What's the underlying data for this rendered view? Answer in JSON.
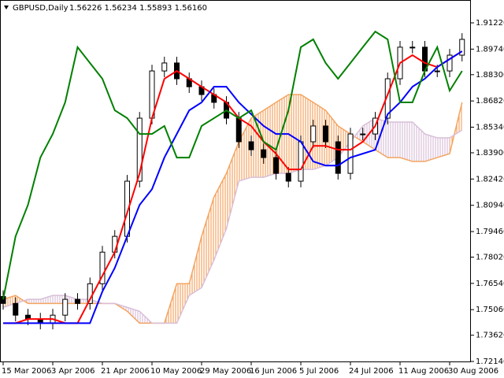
{
  "chart_data": {
    "type": "candlestick",
    "title": "GBPUSD,Daily",
    "quote": "1.56226 1.56234 1.55893 1.56160",
    "categories": [
      "15 Mar 2006",
      null,
      null,
      null,
      "3 Apr 2006",
      null,
      null,
      null,
      "21 Apr 2006",
      null,
      null,
      null,
      "10 May 2006",
      null,
      null,
      null,
      "29 May 2006",
      null,
      null,
      null,
      "16 Jun 2006",
      null,
      null,
      null,
      "5 Jul 2006",
      null,
      null,
      null,
      "24 Jul 2006",
      null,
      null,
      null,
      "11 Aug 2006",
      null,
      null,
      null,
      "30 Aug 2006",
      null
    ],
    "open": [
      1.758,
      1.7541,
      1.7475,
      1.7453,
      1.743,
      1.7475,
      1.7564,
      1.7541,
      1.7652,
      1.783,
      1.7919,
      1.823,
      1.8585,
      1.8851,
      1.8896,
      1.8807,
      1.8762,
      1.8718,
      1.8674,
      1.8585,
      1.8452,
      1.8407,
      1.8363,
      1.8274,
      1.823,
      1.8452,
      1.8541,
      1.8452,
      1.8274,
      1.8496,
      1.8496,
      1.8585,
      1.8807,
      1.8985,
      1.8985,
      1.8851,
      1.8851,
      1.894
    ],
    "high": [
      1.7615,
      1.7576,
      1.751,
      1.7488,
      1.751,
      1.7599,
      1.7599,
      1.7687,
      1.7865,
      1.7954,
      1.8265,
      1.862,
      1.8886,
      1.8931,
      1.8931,
      1.8842,
      1.8797,
      1.8753,
      1.8709,
      1.862,
      1.8487,
      1.8442,
      1.8398,
      1.8309,
      1.8487,
      1.8576,
      1.8576,
      1.8487,
      1.8531,
      1.8531,
      1.862,
      1.8842,
      1.902,
      1.902,
      1.902,
      1.8886,
      1.8975,
      1.9064
    ],
    "low": [
      1.7506,
      1.744,
      1.7418,
      1.7395,
      1.7395,
      1.744,
      1.7506,
      1.7506,
      1.7617,
      1.7795,
      1.7884,
      1.8195,
      1.855,
      1.8816,
      1.8772,
      1.8727,
      1.8683,
      1.8639,
      1.855,
      1.8417,
      1.8372,
      1.8328,
      1.8239,
      1.8195,
      1.8195,
      1.8417,
      1.8417,
      1.8239,
      1.8239,
      1.8461,
      1.8461,
      1.855,
      1.8772,
      1.895,
      1.8816,
      1.8816,
      1.8816,
      1.8905
    ],
    "close": [
      1.7541,
      1.7475,
      1.7453,
      1.743,
      1.7475,
      1.7564,
      1.7541,
      1.7652,
      1.783,
      1.7919,
      1.823,
      1.8585,
      1.8851,
      1.8896,
      1.8807,
      1.8762,
      1.8718,
      1.8674,
      1.8585,
      1.8452,
      1.8407,
      1.8363,
      1.8274,
      1.823,
      1.8452,
      1.8541,
      1.8452,
      1.8274,
      1.8496,
      1.8496,
      1.8585,
      1.8807,
      1.8985,
      1.8985,
      1.8851,
      1.8851,
      1.894,
      1.9029
    ],
    "up_color": "#ffffff",
    "down_color": "#000000",
    "series": [
      {
        "color": "#ff0000",
        "values": [
          1.743,
          1.743,
          1.7453,
          1.7453,
          1.7453,
          1.743,
          1.743,
          1.7564,
          1.7697,
          1.783,
          1.8052,
          1.8274,
          1.8585,
          1.8807,
          1.8851,
          1.8807,
          1.8762,
          1.8718,
          1.8674,
          1.8585,
          1.8541,
          1.8452,
          1.8385,
          1.8296,
          1.8296,
          1.8429,
          1.8429,
          1.8407,
          1.8407,
          1.8452,
          1.8541,
          1.8718,
          1.8896,
          1.894,
          1.8896,
          1.8873,
          1.8918,
          1.8962
        ]
      },
      {
        "color": "#0000ff",
        "values": [
          1.743,
          1.743,
          1.743,
          1.743,
          1.743,
          1.743,
          1.743,
          1.743,
          1.7608,
          1.7741,
          1.7919,
          1.8096,
          1.8185,
          1.8363,
          1.8496,
          1.8629,
          1.8674,
          1.8762,
          1.8762,
          1.8674,
          1.8607,
          1.8541,
          1.8496,
          1.8496,
          1.8452,
          1.8341,
          1.8318,
          1.8318,
          1.8363,
          1.8385,
          1.8407,
          1.8607,
          1.8674,
          1.8762,
          1.8807,
          1.8873,
          1.8918,
          1.8962
        ]
      },
      {
        "color": "#008000",
        "values": [
          1.7564,
          1.7919,
          1.8096,
          1.8363,
          1.8496,
          1.8674,
          1.8985,
          1.8896,
          1.8807,
          1.8629,
          1.8585,
          1.8496,
          1.8496,
          1.8541,
          1.8363,
          1.8363,
          1.8541,
          1.8585,
          1.8629,
          1.8585,
          1.8629,
          1.8452,
          1.8407,
          1.8629,
          1.8985,
          1.9029,
          1.8896,
          1.8807,
          1.8896,
          1.8985,
          1.9073,
          1.9029,
          1.8674,
          1.8674,
          1.8851,
          1.8985,
          1.874,
          1.8851
        ]
      }
    ],
    "cloud": {
      "span_a": {
        "color": "#f4a460",
        "values": [
          1.7564,
          1.7586,
          1.7541,
          1.7541,
          1.7541,
          1.7541,
          1.7541,
          1.7541,
          1.7541,
          1.7541,
          1.7497,
          1.743,
          1.743,
          1.743,
          1.7652,
          1.7652,
          1.7919,
          1.8141,
          1.8274,
          1.8452,
          1.8585,
          1.8629,
          1.8674,
          1.8718,
          1.8718,
          1.8674,
          1.8629,
          1.8541,
          1.8496,
          1.8452,
          1.8407,
          1.8363,
          1.8363,
          1.8341,
          1.8341,
          1.8363,
          1.8385,
          1.8674
        ]
      },
      "span_b": {
        "color": "#d8bfd8",
        "values": [
          1.7519,
          1.7541,
          1.7564,
          1.7564,
          1.7586,
          1.7586,
          1.7564,
          1.7564,
          1.7541,
          1.7541,
          1.7519,
          1.7497,
          1.743,
          1.743,
          1.743,
          1.7586,
          1.763,
          1.7786,
          1.7963,
          1.823,
          1.8252,
          1.8252,
          1.8274,
          1.8274,
          1.8296,
          1.8296,
          1.8318,
          1.8363,
          1.8452,
          1.8541,
          1.8585,
          1.8563,
          1.8563,
          1.8563,
          1.8496,
          1.8474,
          1.8474,
          1.8518
        ]
      }
    },
    "ylim": [
      1.72096,
      1.92508
    ],
    "yticks": [
      {
        "value": 1.9122,
        "label": "1.91220"
      },
      {
        "value": 1.8974,
        "label": "1.89740"
      },
      {
        "value": 1.883,
        "label": "1.88300"
      },
      {
        "value": 1.8682,
        "label": "1.86820"
      },
      {
        "value": 1.8534,
        "label": "1.85340"
      },
      {
        "value": 1.839,
        "label": "1.83900"
      },
      {
        "value": 1.8242,
        "label": "1.82420"
      },
      {
        "value": 1.8094,
        "label": "1.80940"
      },
      {
        "value": 1.7946,
        "label": "1.79460"
      },
      {
        "value": 1.7802,
        "label": "1.78020"
      },
      {
        "value": 1.7654,
        "label": "1.76540"
      },
      {
        "value": 1.7506,
        "label": "1.75060"
      },
      {
        "value": 1.7362,
        "label": "1.73620"
      },
      {
        "value": 1.7214,
        "label": "1.72140"
      }
    ]
  }
}
